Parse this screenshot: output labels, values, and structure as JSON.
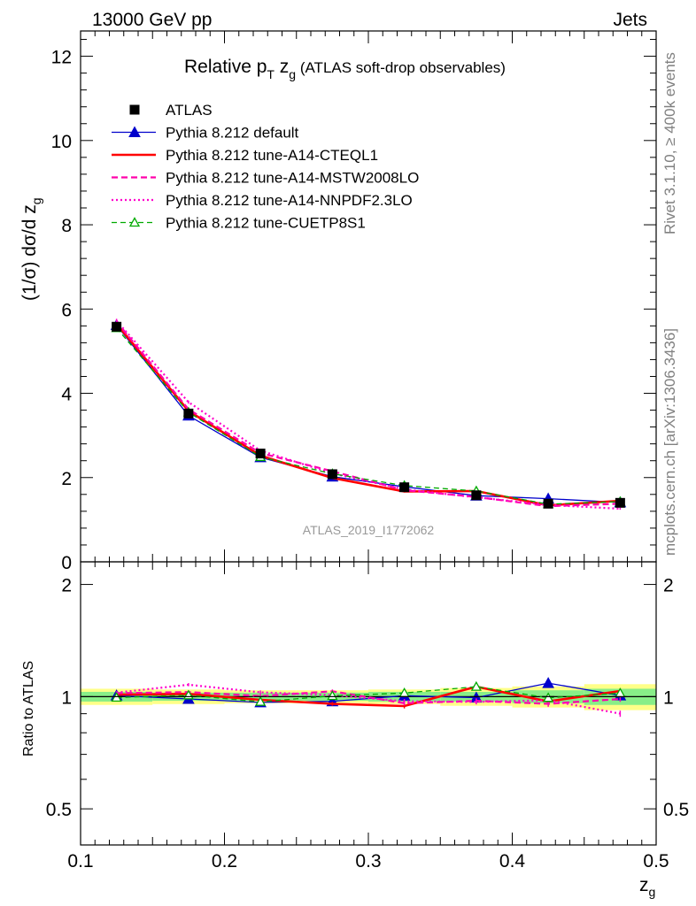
{
  "header": {
    "left": "13000 GeV pp",
    "right": "Jets"
  },
  "side_labels": {
    "rivet": "Rivet 3.1.10, ≥ 400k events",
    "mcplots": "mcplots.cern.ch [arXiv:1306.3436]"
  },
  "title": {
    "prefix": "Relative p",
    "sub1": "T",
    "mid": " z",
    "sub2": "g",
    "suffix": " (ATLAS soft-drop observables)"
  },
  "watermark": "ATLAS_2019_I1772062",
  "axes": {
    "ylabel_main": "(1/σ) dσ/d z",
    "ylabel_main_sub": "g",
    "ylabel_ratio": "Ratio to ATLAS",
    "xlabel": "z",
    "xlabel_sub": "g"
  },
  "chart_data": {
    "type": "line",
    "x": [
      0.125,
      0.175,
      0.225,
      0.275,
      0.325,
      0.375,
      0.425,
      0.475
    ],
    "xlim": [
      0.1,
      0.5
    ],
    "ylim_main": [
      0,
      12.6
    ],
    "ylim_ratio": [
      0.4,
      2.3
    ],
    "ratio_log": true,
    "xticks": [
      "0.1",
      "0.2",
      "0.3",
      "0.4",
      "0.5"
    ],
    "yticks_main": [
      "0",
      "2",
      "4",
      "6",
      "8",
      "10",
      "12"
    ],
    "yticks_ratio": [
      "0.5",
      "1",
      "2"
    ],
    "data": {
      "name": "ATLAS",
      "values": [
        5.58,
        3.52,
        2.57,
        2.08,
        1.77,
        1.58,
        1.38,
        1.4
      ],
      "errors": [
        0.08,
        0.06,
        0.05,
        0.04,
        0.04,
        0.04,
        0.04,
        0.04
      ],
      "band_stat": [
        0.03,
        0.025,
        0.025,
        0.025,
        0.03,
        0.03,
        0.04,
        0.05
      ],
      "band_total": [
        0.05,
        0.045,
        0.04,
        0.04,
        0.045,
        0.055,
        0.065,
        0.08
      ]
    },
    "series": [
      {
        "name": "Pythia 8.212 default",
        "color": "#0000cc",
        "dash": "",
        "width": 1.3,
        "marker": "triangle-filled",
        "values": [
          5.62,
          3.47,
          2.48,
          2.02,
          1.78,
          1.57,
          1.5,
          1.41
        ]
      },
      {
        "name": "Pythia 8.212 tune-A14-CTEQL1",
        "color": "#ff0000",
        "dash": "",
        "width": 2.6,
        "marker": "none",
        "values": [
          5.65,
          3.58,
          2.52,
          1.99,
          1.67,
          1.68,
          1.34,
          1.45
        ]
      },
      {
        "name": "Pythia 8.212 tune-A14-MSTW2008LO",
        "color": "#ff00aa",
        "dash": "7,4",
        "width": 2.2,
        "marker": "none",
        "values": [
          5.7,
          3.62,
          2.58,
          2.15,
          1.7,
          1.54,
          1.32,
          1.38
        ]
      },
      {
        "name": "Pythia 8.212 tune-A14-NNPDF2.3LO",
        "color": "#ff00cc",
        "dash": "2,3",
        "width": 2.2,
        "marker": "none",
        "values": [
          5.72,
          3.79,
          2.64,
          2.1,
          1.72,
          1.53,
          1.35,
          1.26
        ]
      },
      {
        "name": "Pythia 8.212 tune-CUETP8S1",
        "color": "#00aa00",
        "dash": "6,4",
        "width": 1.3,
        "marker": "triangle-open",
        "values": [
          5.55,
          3.55,
          2.49,
          2.09,
          1.81,
          1.68,
          1.37,
          1.43
        ]
      }
    ],
    "legend_position": "top-left"
  }
}
